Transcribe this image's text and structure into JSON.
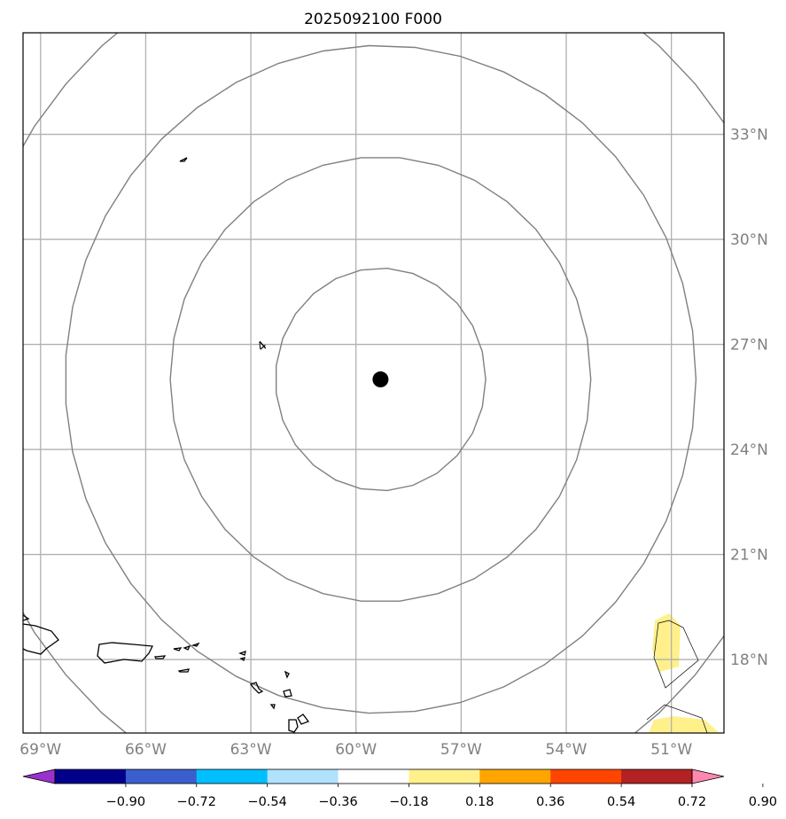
{
  "title": "2025092100 F000",
  "map": {
    "extent": {
      "lon": [
        -69.5,
        -49.5
      ],
      "lat": [
        15.9,
        35.9
      ]
    },
    "gridlines_lon": [
      {
        "value": -69,
        "label": "69°W"
      },
      {
        "value": -66,
        "label": "66°W"
      },
      {
        "value": -63,
        "label": "63°W"
      },
      {
        "value": -60,
        "label": "60°W"
      },
      {
        "value": -57,
        "label": "57°W"
      },
      {
        "value": -54,
        "label": "54°W"
      },
      {
        "value": -51,
        "label": "51°W"
      }
    ],
    "gridlines_lat": [
      {
        "value": 18,
        "label": "18°N"
      },
      {
        "value": 21,
        "label": "21°N"
      },
      {
        "value": 24,
        "label": "24°N"
      },
      {
        "value": 27,
        "label": "27°N"
      },
      {
        "value": 30,
        "label": "30°N"
      },
      {
        "value": 33,
        "label": "33°N"
      }
    ],
    "storm_center": {
      "lon": -59.3,
      "lat": 26.0
    },
    "range_rings_deg": [
      3,
      6,
      9,
      12
    ],
    "contour_label": "4",
    "contour_color": "#000000",
    "ring_color": "#808080",
    "grid_color": "#b0b0b0"
  },
  "colorbar": {
    "colors": [
      "#9932cc",
      "#00008b",
      "#3a5fcd",
      "#00bfff",
      "#b0e2ff",
      "#ffffff",
      "#fff08c",
      "#ffa500",
      "#ff4500",
      "#b22222",
      "#ff88b0"
    ],
    "ticks": [
      "−0.90",
      "−0.72",
      "−0.54",
      "−0.36",
      "−0.18",
      "0.18",
      "0.36",
      "0.54",
      "0.72",
      "0.90"
    ]
  }
}
